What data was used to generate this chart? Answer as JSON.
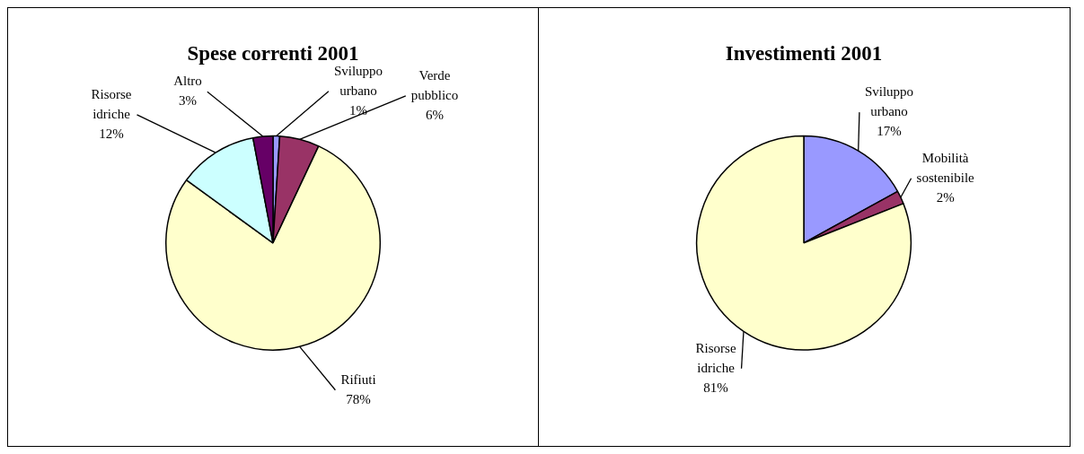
{
  "chart_data": [
    {
      "type": "pie",
      "title": "Spese correnti 2001",
      "categories": [
        "Sviluppo urbano",
        "Verde pubblico",
        "Rifiuti",
        "Risorse idriche",
        "Altro"
      ],
      "values": [
        1,
        6,
        78,
        12,
        3
      ],
      "value_labels": [
        "1%",
        "6%",
        "78%",
        "12%",
        "3%"
      ],
      "colors": [
        "#9999ff",
        "#993366",
        "#ffffcc",
        "#ccffff",
        "#660066"
      ],
      "legend": false
    },
    {
      "type": "pie",
      "title": "Investimenti 2001",
      "categories": [
        "Sviluppo urbano",
        "Mobilità sostenibile",
        "Risorse idriche"
      ],
      "values": [
        17,
        2,
        81
      ],
      "value_labels": [
        "17%",
        "2%",
        "81%"
      ],
      "colors": [
        "#9999ff",
        "#993366",
        "#ffffcc"
      ],
      "legend": false
    }
  ]
}
